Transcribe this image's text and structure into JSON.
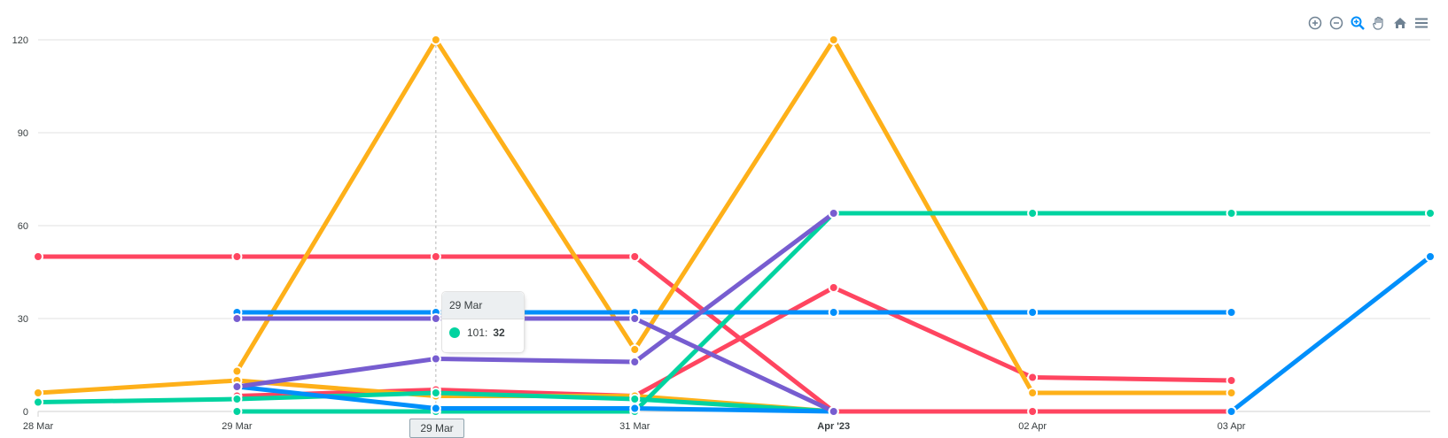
{
  "toolbar": {
    "icons": [
      "zoom-in-icon",
      "zoom-out-icon",
      "selection-zoom-icon",
      "pan-icon",
      "reset-zoom-icon",
      "menu-icon"
    ]
  },
  "tooltip": {
    "title": "29 Mar",
    "series_label": "101:",
    "value": "32",
    "color": "#00d3a0"
  },
  "xaxis_tooltip": "29 Mar",
  "chart_data": {
    "type": "line",
    "ylim": [
      0,
      120
    ],
    "yticks": [
      0,
      30,
      60,
      90,
      120
    ],
    "x_tick_labels": [
      {
        "label": "28 Mar",
        "x": 0,
        "bold": false
      },
      {
        "label": "29 Mar",
        "x": 1,
        "bold": false
      },
      {
        "label": "29 Mar",
        "x": 2,
        "bold": false
      },
      {
        "label": "31 Mar",
        "x": 3,
        "bold": false
      },
      {
        "label": "Apr '23",
        "x": 4,
        "bold": true
      },
      {
        "label": "02 Apr",
        "x": 5,
        "bold": false
      },
      {
        "label": "03 Apr",
        "x": 6,
        "bold": false
      }
    ],
    "x_range": [
      0,
      7
    ],
    "grid": true,
    "series": [
      {
        "color": "#ff4560",
        "points": [
          [
            0,
            50
          ],
          [
            1,
            50
          ],
          [
            2,
            50
          ],
          [
            3,
            50
          ],
          [
            4,
            0
          ],
          [
            5,
            0
          ],
          [
            6,
            0
          ]
        ]
      },
      {
        "color": "#ff4560",
        "points": [
          [
            1,
            5
          ],
          [
            2,
            7
          ],
          [
            3,
            5
          ],
          [
            4,
            40
          ],
          [
            5,
            11
          ],
          [
            6,
            10
          ]
        ]
      },
      {
        "color": "#feb019",
        "points": [
          [
            0,
            6
          ],
          [
            1,
            10
          ],
          [
            2,
            5
          ],
          [
            3,
            5
          ],
          [
            4,
            0
          ]
        ]
      },
      {
        "color": "#feb019",
        "points": [
          [
            1,
            13
          ],
          [
            2,
            120
          ],
          [
            3,
            20
          ],
          [
            4,
            120
          ],
          [
            5,
            6
          ],
          [
            6,
            6
          ]
        ]
      },
      {
        "color": "#00d3a0",
        "points": [
          [
            0,
            3
          ],
          [
            1,
            4
          ],
          [
            2,
            6
          ],
          [
            3,
            4
          ],
          [
            4,
            0
          ]
        ]
      },
      {
        "color": "#00d3a0",
        "points": [
          [
            1,
            0
          ],
          [
            2,
            0
          ],
          [
            3,
            0
          ],
          [
            4,
            64
          ],
          [
            5,
            64
          ],
          [
            6,
            64
          ],
          [
            7,
            64
          ]
        ]
      },
      {
        "color": "#008ffb",
        "points": [
          [
            1,
            32
          ],
          [
            2,
            32
          ],
          [
            3,
            32
          ],
          [
            4,
            32
          ],
          [
            5,
            32
          ],
          [
            6,
            32
          ]
        ]
      },
      {
        "color": "#008ffb",
        "points": [
          [
            1,
            8
          ],
          [
            2,
            1
          ],
          [
            3,
            1
          ],
          [
            4,
            0
          ]
        ]
      },
      {
        "color": "#008ffb",
        "points": [
          [
            6,
            0
          ],
          [
            7,
            50
          ]
        ]
      },
      {
        "color": "#775dd0",
        "points": [
          [
            1,
            30
          ],
          [
            2,
            30
          ],
          [
            3,
            30
          ],
          [
            4,
            0
          ]
        ]
      },
      {
        "color": "#775dd0",
        "points": [
          [
            1,
            8
          ],
          [
            2,
            17
          ],
          [
            3,
            16
          ],
          [
            4,
            64
          ]
        ]
      }
    ]
  }
}
